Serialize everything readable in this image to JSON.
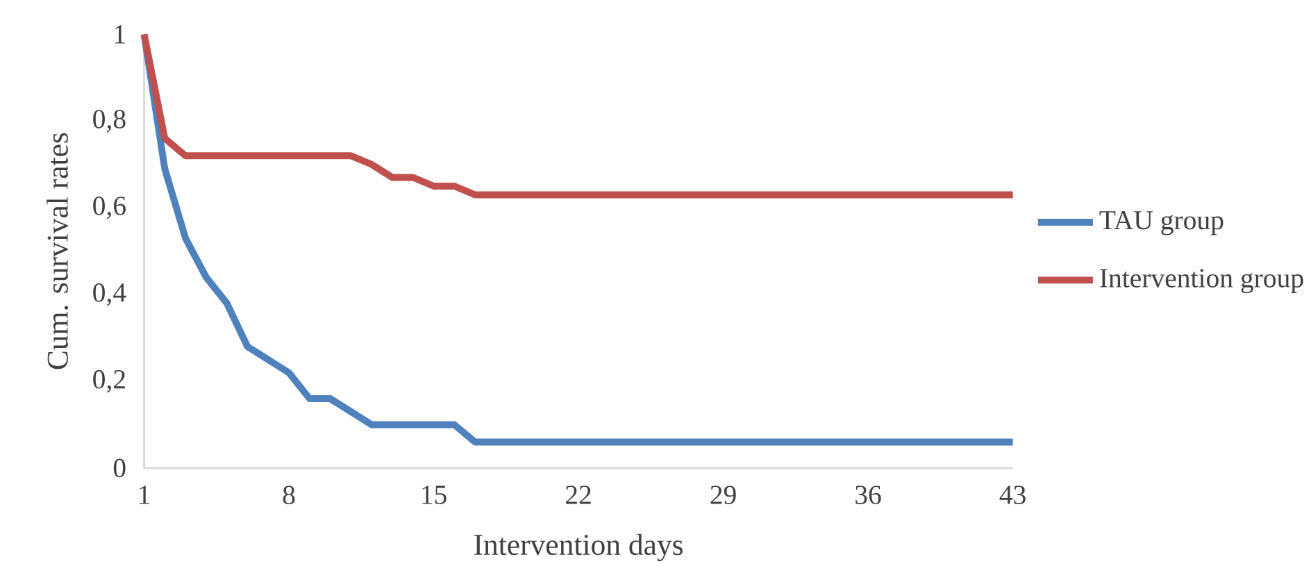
{
  "chart_data": {
    "type": "line",
    "xlabel": "Intervention days",
    "ylabel": "Cum. survival rates",
    "x": [
      1,
      2,
      3,
      4,
      5,
      6,
      7,
      8,
      9,
      10,
      11,
      12,
      13,
      14,
      15,
      16,
      17,
      18,
      19,
      20,
      21,
      22,
      23,
      24,
      25,
      26,
      27,
      28,
      29,
      30,
      31,
      32,
      33,
      34,
      35,
      36,
      37,
      38,
      39,
      40,
      41,
      42,
      43
    ],
    "series": [
      {
        "name": "TAU group",
        "color": "#4f81bd",
        "values": [
          1,
          0.69,
          0.53,
          0.44,
          0.38,
          0.28,
          0.25,
          0.22,
          0.16,
          0.16,
          0.13,
          0.1,
          0.1,
          0.1,
          0.1,
          0.1,
          0.06,
          0.06,
          0.06,
          0.06,
          0.06,
          0.06,
          0.06,
          0.06,
          0.06,
          0.06,
          0.06,
          0.06,
          0.06,
          0.06,
          0.06,
          0.06,
          0.06,
          0.06,
          0.06,
          0.06,
          0.06,
          0.06,
          0.06,
          0.06,
          0.06,
          0.06,
          0.06
        ]
      },
      {
        "name": "Intervention group",
        "color": "#c0504d",
        "values": [
          1,
          0.76,
          0.72,
          0.72,
          0.72,
          0.72,
          0.72,
          0.72,
          0.72,
          0.72,
          0.72,
          0.7,
          0.67,
          0.67,
          0.65,
          0.65,
          0.63,
          0.63,
          0.63,
          0.63,
          0.63,
          0.63,
          0.63,
          0.63,
          0.63,
          0.63,
          0.63,
          0.63,
          0.63,
          0.63,
          0.63,
          0.63,
          0.63,
          0.63,
          0.63,
          0.63,
          0.63,
          0.63,
          0.63,
          0.63,
          0.63,
          0.63,
          0.63
        ]
      }
    ],
    "xlim": [
      1,
      43
    ],
    "xticks": [
      1,
      8,
      15,
      22,
      29,
      36,
      43
    ],
    "ylim": [
      0,
      1
    ],
    "yticks": [
      0,
      {
        "value": 0.2,
        "label": "0,2"
      },
      {
        "value": 0.4,
        "label": "0,4"
      },
      {
        "value": 0.6,
        "label": "0,6"
      },
      {
        "value": 0.8,
        "label": "0,8"
      },
      1
    ],
    "grid": false,
    "legend": "right",
    "marker": "none",
    "line_style": "solid"
  }
}
